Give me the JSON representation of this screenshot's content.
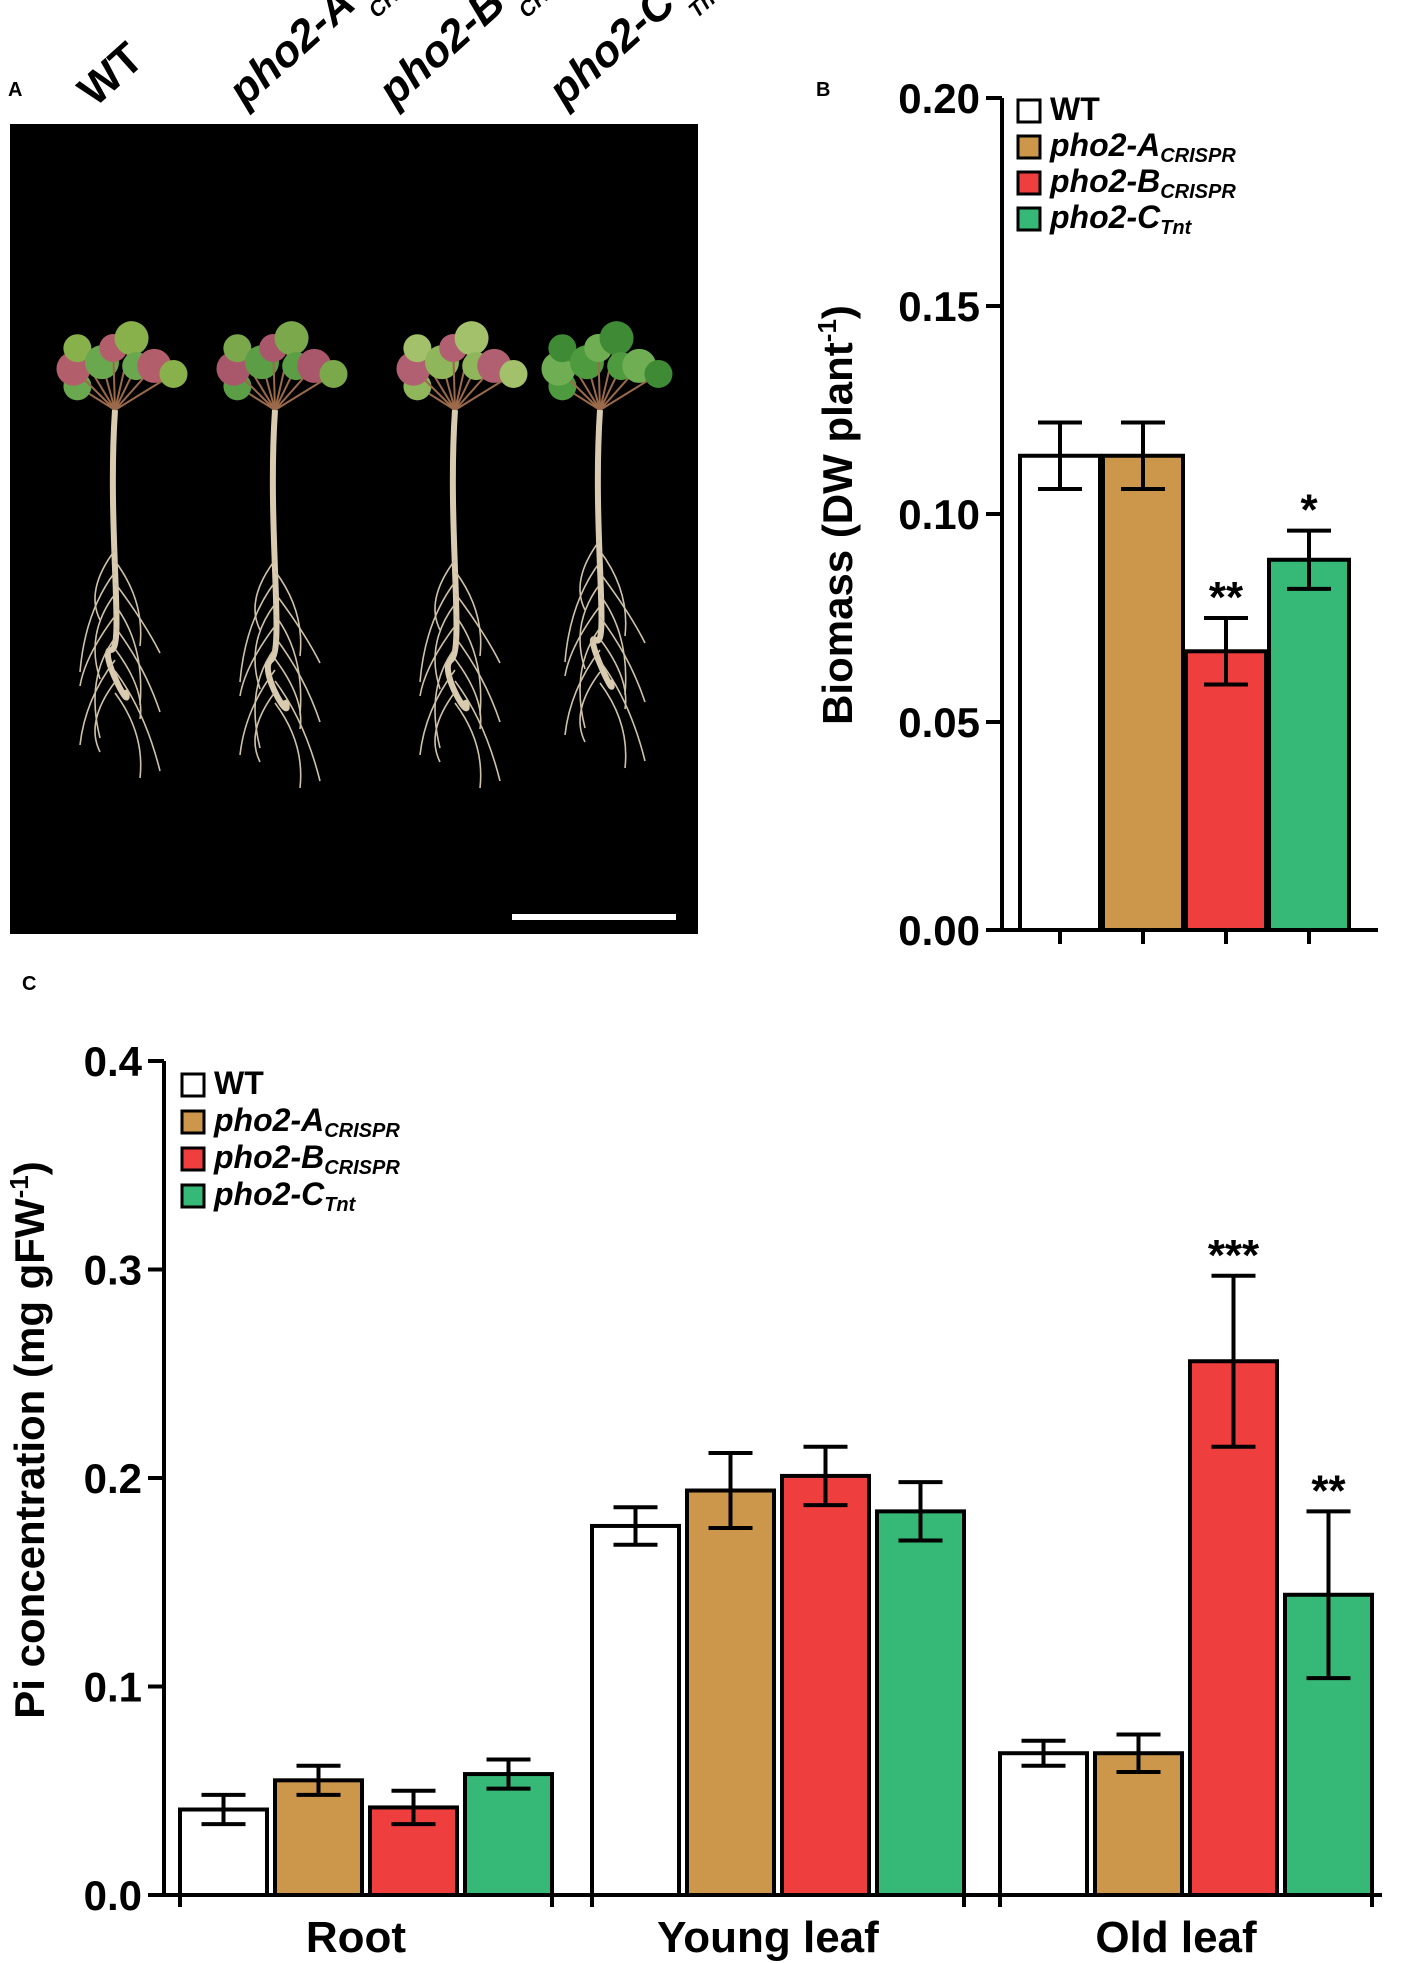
{
  "figure": {
    "panel_labels": {
      "a": "A",
      "b": "B",
      "c": "C"
    }
  },
  "photo": {
    "genotypes": [
      {
        "main": "WT",
        "sub": "",
        "italic": false
      },
      {
        "main": "pho2-A",
        "sub": "CRISPR",
        "italic": true
      },
      {
        "main": "pho2-B",
        "sub": "CRISPR",
        "italic": true
      },
      {
        "main": "pho2-C",
        "sub": "Tnt",
        "italic": true
      }
    ]
  },
  "legend": [
    {
      "main": "WT",
      "sub": "",
      "italic": false,
      "color": "#ffffff"
    },
    {
      "main": "pho2-A",
      "sub": "CRISPR",
      "italic": true,
      "color": "#cc974a"
    },
    {
      "main": "pho2-B",
      "sub": "CRISPR",
      "italic": true,
      "color": "#ee3e3e"
    },
    {
      "main": "pho2-C",
      "sub": "Tnt",
      "italic": true,
      "color": "#36b877"
    }
  ],
  "chart_data": [
    {
      "type": "bar",
      "panel": "B",
      "ylabel_main": "Biomass (DW plant",
      "ylabel_sup": "-1",
      "ylabel_close": ")",
      "ylim": [
        0,
        0.2
      ],
      "yticks": [
        "0.00",
        "0.05",
        "0.10",
        "0.15",
        "0.20"
      ],
      "categories": [
        "WT",
        "pho2-A CRISPR",
        "pho2-B CRISPR",
        "pho2-C Tnt"
      ],
      "values": [
        0.114,
        0.114,
        0.067,
        0.089
      ],
      "errors": [
        0.008,
        0.008,
        0.008,
        0.007
      ],
      "significance": [
        "",
        "",
        "**",
        "*"
      ],
      "colors": [
        "#ffffff",
        "#cc974a",
        "#ee3e3e",
        "#36b877"
      ],
      "legend_placement": "top-right"
    },
    {
      "type": "bar",
      "panel": "C",
      "ylabel_main": "Pi concentration (mg gFW",
      "ylabel_sup": "-1",
      "ylabel_close": ")",
      "ylim": [
        0,
        0.4
      ],
      "yticks": [
        "0.0",
        "0.1",
        "0.2",
        "0.3",
        "0.4"
      ],
      "categories": [
        "Root",
        "Young leaf",
        "Old leaf"
      ],
      "series": [
        {
          "name": "WT",
          "color": "#ffffff",
          "values": [
            0.041,
            0.177,
            0.068
          ],
          "errors": [
            0.007,
            0.009,
            0.006
          ],
          "significance": [
            "",
            "",
            ""
          ]
        },
        {
          "name": "pho2-A CRISPR",
          "color": "#cc974a",
          "values": [
            0.055,
            0.194,
            0.068
          ],
          "errors": [
            0.007,
            0.018,
            0.009
          ],
          "significance": [
            "",
            "",
            ""
          ]
        },
        {
          "name": "pho2-B CRISPR",
          "color": "#ee3e3e",
          "values": [
            0.042,
            0.201,
            0.256
          ],
          "errors": [
            0.008,
            0.014,
            0.041
          ],
          "significance": [
            "",
            "",
            "***"
          ]
        },
        {
          "name": "pho2-C Tnt",
          "color": "#36b877",
          "values": [
            0.058,
            0.184,
            0.144
          ],
          "errors": [
            0.007,
            0.014,
            0.04
          ],
          "significance": [
            "",
            "",
            "**"
          ]
        }
      ],
      "legend_placement": "top-left"
    }
  ]
}
